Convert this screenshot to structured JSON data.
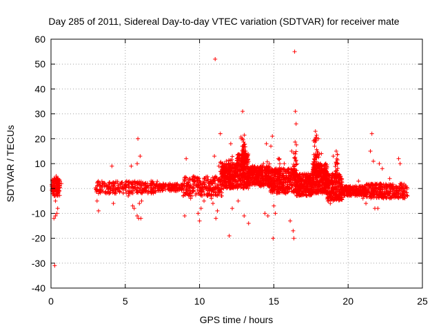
{
  "chart_data": {
    "type": "scatter",
    "title": "Day 285 of 2011, Sidereal Day-to-day VTEC variation (SDTVAR) for receiver mate",
    "xlabel": "GPS time / hours",
    "ylabel": "SDTVAR / TECUs",
    "xlim": [
      0,
      25
    ],
    "ylim": [
      -40,
      60
    ],
    "xticks": [
      0,
      5,
      10,
      15,
      20,
      25
    ],
    "yticks": [
      -40,
      -30,
      -20,
      -10,
      0,
      10,
      20,
      30,
      40,
      50,
      60
    ],
    "grid": true,
    "marker": "+",
    "color": "#ff0000",
    "series": [
      {
        "name": "SDTVAR",
        "points": [
          [
            0.1,
            3
          ],
          [
            0.15,
            -2
          ],
          [
            0.2,
            4
          ],
          [
            0.25,
            1
          ],
          [
            0.3,
            -5
          ],
          [
            0.35,
            2
          ],
          [
            0.4,
            -10
          ],
          [
            0.2,
            -12
          ],
          [
            0.25,
            -31
          ],
          [
            0.3,
            -11
          ],
          [
            0.5,
            2
          ],
          [
            0.6,
            3
          ],
          [
            0.45,
            -8
          ],
          [
            0.55,
            -1
          ],
          [
            0.7,
            2
          ],
          [
            0.5,
            0
          ],
          [
            0.35,
            5
          ],
          [
            0.6,
            1
          ],
          [
            3.1,
            -5
          ],
          [
            3.2,
            -9
          ],
          [
            3.2,
            -2
          ],
          [
            3.3,
            1
          ],
          [
            3.5,
            2
          ],
          [
            3.7,
            1
          ],
          [
            3.9,
            -2
          ],
          [
            4.1,
            9
          ],
          [
            4.2,
            -6
          ],
          [
            4.0,
            0
          ],
          [
            4.3,
            -2
          ],
          [
            4.5,
            2
          ],
          [
            4.8,
            1
          ],
          [
            5.2,
            -3
          ],
          [
            5.4,
            9
          ],
          [
            5.5,
            -7
          ],
          [
            5.6,
            -8
          ],
          [
            5.8,
            10
          ],
          [
            5.8,
            -11
          ],
          [
            5.9,
            -12
          ],
          [
            5.85,
            20
          ],
          [
            6.0,
            13
          ],
          [
            6.05,
            -12
          ],
          [
            5.95,
            -6
          ],
          [
            6.1,
            -5
          ],
          [
            6.2,
            2
          ],
          [
            6.5,
            1
          ],
          [
            6.8,
            2
          ],
          [
            7.0,
            1
          ],
          [
            7.5,
            1
          ],
          [
            8.0,
            2
          ],
          [
            8.5,
            0
          ],
          [
            8.9,
            -3
          ],
          [
            9.0,
            -11
          ],
          [
            9.1,
            12
          ],
          [
            9.2,
            -2
          ],
          [
            9.4,
            -4
          ],
          [
            9.6,
            0
          ],
          [
            9.8,
            1
          ],
          [
            9.9,
            -10
          ],
          [
            10.0,
            -13
          ],
          [
            10.1,
            -8
          ],
          [
            10.3,
            -5
          ],
          [
            10.6,
            2
          ],
          [
            10.8,
            -4
          ],
          [
            10.9,
            -6
          ],
          [
            11.0,
            13
          ],
          [
            11.05,
            52
          ],
          [
            11.1,
            -12
          ],
          [
            11.2,
            -9
          ],
          [
            11.3,
            9
          ],
          [
            11.4,
            22
          ],
          [
            11.5,
            -3
          ],
          [
            11.6,
            9
          ],
          [
            11.8,
            11
          ],
          [
            12.0,
            -19
          ],
          [
            12.1,
            18
          ],
          [
            12.2,
            -8
          ],
          [
            12.4,
            6
          ],
          [
            12.6,
            -5
          ],
          [
            12.8,
            20
          ],
          [
            12.9,
            31
          ],
          [
            13.0,
            -11
          ],
          [
            13.1,
            15
          ],
          [
            13.3,
            -14
          ],
          [
            13.5,
            6
          ],
          [
            13.7,
            4
          ],
          [
            14.0,
            8
          ],
          [
            14.3,
            10
          ],
          [
            14.4,
            -10
          ],
          [
            14.5,
            18
          ],
          [
            14.6,
            -11
          ],
          [
            14.8,
            17
          ],
          [
            14.9,
            21
          ],
          [
            14.95,
            -20
          ],
          [
            15.0,
            -7
          ],
          [
            15.1,
            -10
          ],
          [
            15.3,
            12
          ],
          [
            15.5,
            8
          ],
          [
            15.7,
            10
          ],
          [
            16.0,
            8
          ],
          [
            16.1,
            -13
          ],
          [
            16.2,
            15
          ],
          [
            16.3,
            -17
          ],
          [
            16.35,
            -20
          ],
          [
            16.4,
            55
          ],
          [
            16.45,
            31
          ],
          [
            16.5,
            26
          ],
          [
            16.6,
            0
          ],
          [
            16.8,
            4
          ],
          [
            17.0,
            2
          ],
          [
            17.5,
            1
          ],
          [
            17.8,
            23
          ],
          [
            18.0,
            20
          ],
          [
            18.2,
            14
          ],
          [
            18.5,
            10
          ],
          [
            18.8,
            -6
          ],
          [
            19.0,
            13
          ],
          [
            19.2,
            15
          ],
          [
            19.5,
            1
          ],
          [
            19.8,
            0
          ],
          [
            20.1,
            -1
          ],
          [
            20.5,
            0
          ],
          [
            20.7,
            3
          ],
          [
            21.0,
            -4
          ],
          [
            21.2,
            -6
          ],
          [
            21.5,
            15
          ],
          [
            21.6,
            22
          ],
          [
            21.7,
            11
          ],
          [
            21.8,
            -8
          ],
          [
            22.0,
            -8
          ],
          [
            22.1,
            10
          ],
          [
            22.3,
            8
          ],
          [
            22.5,
            -2
          ],
          [
            22.8,
            4
          ],
          [
            23.0,
            -2
          ],
          [
            23.2,
            -3
          ],
          [
            23.4,
            12
          ],
          [
            23.5,
            10
          ],
          [
            23.7,
            0
          ],
          [
            23.9,
            1
          ],
          [
            24.0,
            -3
          ]
        ],
        "bands": [
          [
            0.05,
            0.6,
            -3,
            4,
            120
          ],
          [
            3.0,
            7.2,
            -2,
            3,
            260
          ],
          [
            7.2,
            8.9,
            -1,
            2,
            120
          ],
          [
            8.9,
            11.5,
            -3,
            5,
            260
          ],
          [
            11.5,
            12.5,
            0,
            10,
            260
          ],
          [
            12.5,
            13.3,
            0,
            14,
            260
          ],
          [
            13.3,
            14.7,
            1,
            9,
            300
          ],
          [
            14.7,
            16.5,
            -2,
            8,
            360
          ],
          [
            16.5,
            17.6,
            -3,
            6,
            280
          ],
          [
            17.6,
            18.6,
            -2,
            10,
            320
          ],
          [
            18.6,
            19.6,
            -5,
            6,
            260
          ],
          [
            19.6,
            21.2,
            -3,
            1,
            220
          ],
          [
            21.2,
            24.0,
            -4,
            2,
            300
          ]
        ],
        "spikes": [
          [
            12.9,
            5,
            22,
            35
          ],
          [
            13.0,
            3,
            18,
            25
          ],
          [
            16.45,
            4,
            19,
            25
          ],
          [
            17.8,
            8,
            22,
            30
          ],
          [
            18.0,
            6,
            16,
            20
          ],
          [
            19.2,
            4,
            14,
            20
          ],
          [
            11.5,
            4,
            11,
            20
          ],
          [
            12.1,
            5,
            13,
            20
          ],
          [
            14.6,
            4,
            11,
            16
          ],
          [
            15.3,
            3,
            12,
            14
          ]
        ]
      }
    ]
  }
}
